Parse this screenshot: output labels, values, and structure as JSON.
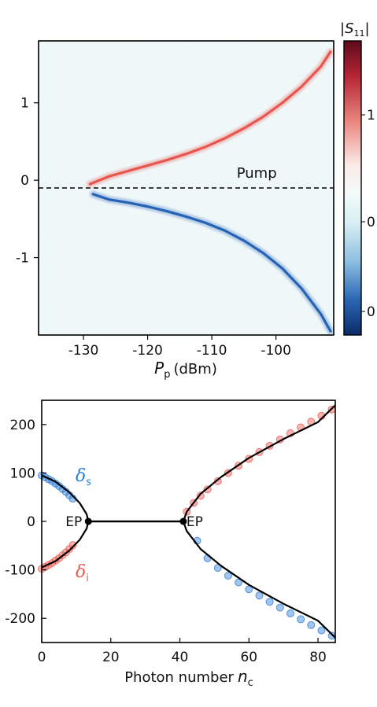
{
  "chart_data": [
    {
      "type": "heatmap",
      "title": "",
      "xlabel_symbol": "P",
      "xlabel_subscript": "p",
      "xlabel_unit": "(dBm)",
      "ylabel": "",
      "xlim": [
        -137,
        -91
      ],
      "ylim": [
        -2,
        1.8
      ],
      "x_ticks": [
        -130,
        -120,
        -110,
        -100
      ],
      "y_ticks": [
        1,
        0,
        -1
      ],
      "colorbar": {
        "label_symbol": "S",
        "label_subscript": "11",
        "tick_labels": [
          "1",
          "0",
          "0"
        ]
      },
      "annotations": [
        {
          "text": "Pump",
          "x": -103,
          "y": 0.03
        }
      ],
      "series": [
        {
          "kind": "pump-dashed-line",
          "color": "#000000",
          "x": [
            -137,
            -91
          ],
          "y": [
            -0.1,
            -0.1
          ]
        },
        {
          "kind": "ridge",
          "color": "#e8564f",
          "x": [
            -129,
            -126,
            -123,
            -120,
            -117,
            -114,
            -111,
            -108,
            -105,
            -102,
            -99,
            -96,
            -93,
            -91.5
          ],
          "y": [
            -0.05,
            0.05,
            0.12,
            0.19,
            0.26,
            0.34,
            0.43,
            0.54,
            0.67,
            0.82,
            1.0,
            1.21,
            1.47,
            1.66
          ]
        },
        {
          "kind": "ridge",
          "color": "#2563b6",
          "x": [
            -128.5,
            -126,
            -123,
            -120,
            -117,
            -114,
            -111,
            -108,
            -105,
            -102,
            -99,
            -96,
            -93,
            -91.5
          ],
          "y": [
            -0.18,
            -0.25,
            -0.29,
            -0.34,
            -0.4,
            -0.47,
            -0.55,
            -0.65,
            -0.78,
            -0.94,
            -1.14,
            -1.4,
            -1.73,
            -1.95
          ]
        },
        {
          "kind": "band",
          "color": "#bfe6ec",
          "x": [
            -137,
            -129
          ],
          "y": [
            -0.05,
            -0.05
          ]
        }
      ],
      "colors": {
        "red": "#e8564f",
        "blue": "#2563b6",
        "cyan": "#bfe6ec"
      }
    },
    {
      "type": "scatter",
      "title": "",
      "xlabel": "Photon number",
      "xlabel_symbol": "n",
      "xlabel_subscript": "c",
      "ylabel": "",
      "xlim": [
        0,
        85
      ],
      "ylim": [
        -250,
        250
      ],
      "x_ticks": [
        0,
        20,
        40,
        60,
        80
      ],
      "y_ticks": [
        200,
        100,
        0,
        -100,
        -200
      ],
      "annotations": [
        {
          "text": "EP",
          "x": 13.5,
          "y": 0
        },
        {
          "text": "EP",
          "x": 41,
          "y": 0
        }
      ],
      "legend": [
        {
          "symbol": "δ",
          "subscript": "s",
          "color": "#2f7fd6"
        },
        {
          "symbol": "δ",
          "subscript": "i",
          "color": "#ec5b53"
        }
      ],
      "exceptional_points": [
        {
          "x": 13.5,
          "y": 0
        },
        {
          "x": 41,
          "y": 0
        }
      ],
      "series": [
        {
          "name": "δs",
          "color": "#2f7fd6",
          "x": [
            0,
            1,
            2,
            3,
            4,
            5,
            6,
            7,
            8,
            9,
            45,
            48,
            51,
            54,
            57,
            60,
            63,
            66,
            69,
            72,
            75,
            78,
            81,
            84
          ],
          "y": [
            95,
            91,
            87,
            83,
            78,
            73,
            67,
            61,
            54,
            47,
            -40,
            -76,
            -96,
            -112,
            -126,
            -140,
            -153,
            -166,
            -178,
            -190,
            -202,
            -214,
            -225,
            -236
          ]
        },
        {
          "name": "δi",
          "color": "#ec5b53",
          "x": [
            0,
            1,
            2,
            3,
            4,
            5,
            6,
            7,
            8,
            9,
            42,
            44,
            46,
            48,
            51,
            54,
            57,
            60,
            63,
            66,
            69,
            72,
            75,
            78,
            81,
            84
          ],
          "y": [
            -98,
            -94,
            -90,
            -86,
            -81,
            -76,
            -70,
            -64,
            -57,
            -49,
            20,
            38,
            53,
            66,
            83,
            100,
            115,
            129,
            143,
            156,
            169,
            182,
            194,
            206,
            218,
            231
          ]
        },
        {
          "name": "fit",
          "color": "#000000",
          "x": [
            0,
            4,
            8,
            11,
            13,
            13.5,
            41,
            42,
            46,
            52,
            60,
            70,
            80,
            85
          ],
          "y": [
            95,
            82,
            60,
            38,
            15,
            0,
            0,
            20,
            57,
            92,
            131,
            170,
            205,
            240
          ]
        }
      ]
    }
  ]
}
